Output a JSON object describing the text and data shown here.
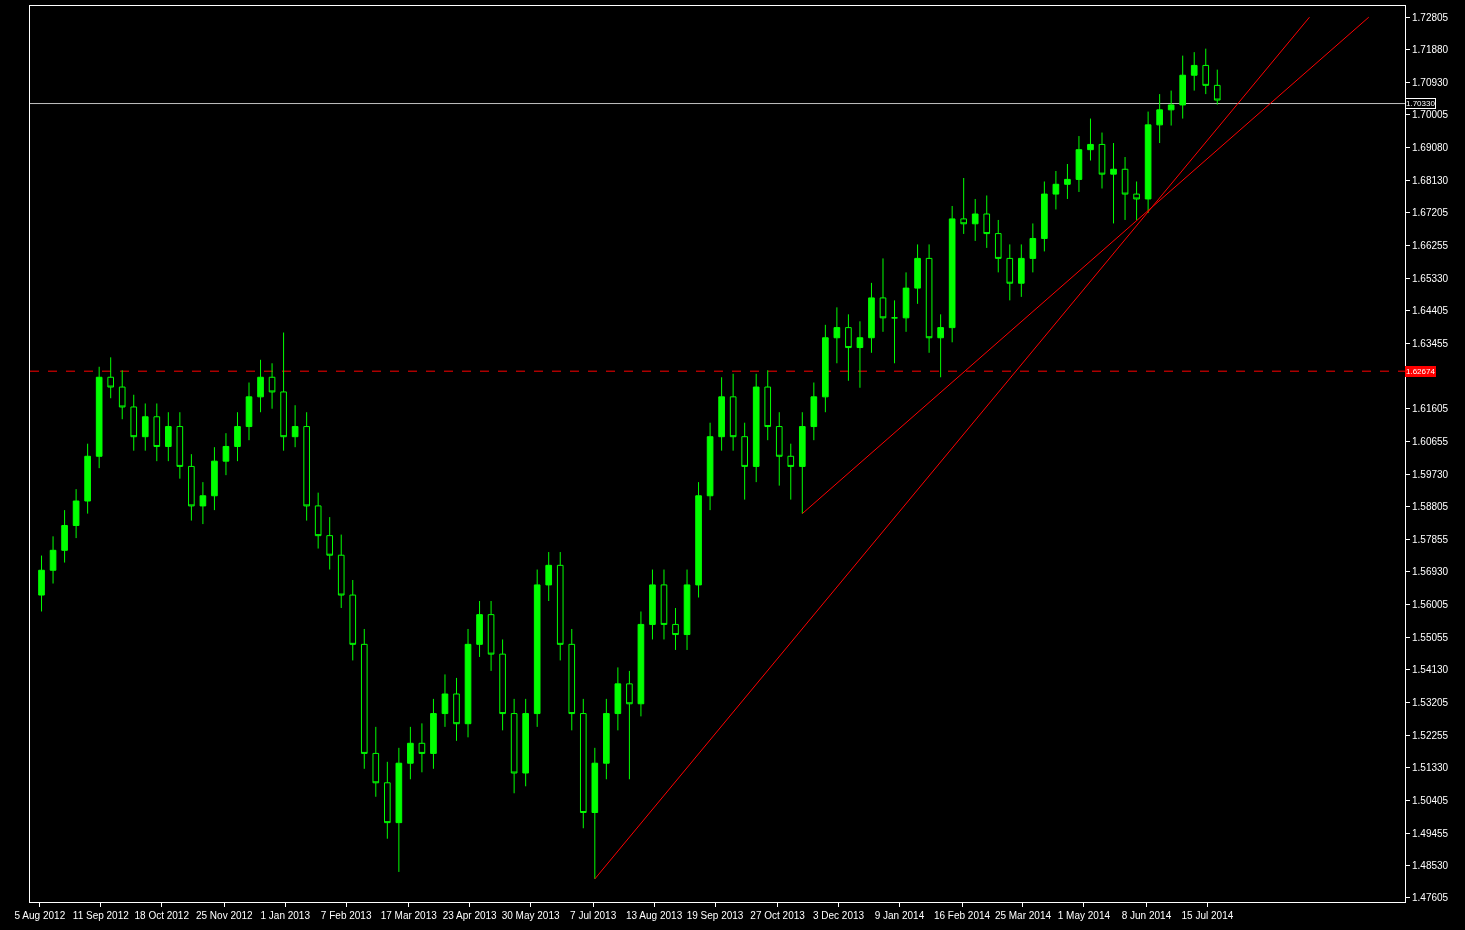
{
  "chart_data": {
    "type": "candlestick",
    "color": "#00ff00",
    "x": [
      "2012-08-06",
      "2012-08-13",
      "2012-08-20",
      "2012-08-27",
      "2012-09-03",
      "2012-09-10",
      "2012-09-17",
      "2012-09-24",
      "2012-10-01",
      "2012-10-08",
      "2012-10-15",
      "2012-10-22",
      "2012-10-29",
      "2012-11-05",
      "2012-11-12",
      "2012-11-19",
      "2012-11-26",
      "2012-12-03",
      "2012-12-10",
      "2012-12-17",
      "2012-12-24",
      "2012-12-31",
      "2013-01-07",
      "2013-01-14",
      "2013-01-21",
      "2013-01-28",
      "2013-02-04",
      "2013-02-11",
      "2013-02-18",
      "2013-02-25",
      "2013-03-04",
      "2013-03-11",
      "2013-03-18",
      "2013-03-25",
      "2013-04-01",
      "2013-04-08",
      "2013-04-15",
      "2013-04-22",
      "2013-04-29",
      "2013-05-06",
      "2013-05-13",
      "2013-05-20",
      "2013-05-27",
      "2013-06-03",
      "2013-06-10",
      "2013-06-17",
      "2013-06-24",
      "2013-07-01",
      "2013-07-08",
      "2013-07-15",
      "2013-07-22",
      "2013-07-29",
      "2013-08-05",
      "2013-08-12",
      "2013-08-19",
      "2013-08-26",
      "2013-09-02",
      "2013-09-09",
      "2013-09-16",
      "2013-09-23",
      "2013-09-30",
      "2013-10-07",
      "2013-10-14",
      "2013-10-21",
      "2013-10-28",
      "2013-11-04",
      "2013-11-11",
      "2013-11-18",
      "2013-11-25",
      "2013-12-02",
      "2013-12-09",
      "2013-12-16",
      "2013-12-23",
      "2013-12-30",
      "2014-01-06",
      "2014-01-13",
      "2014-01-20",
      "2014-01-27",
      "2014-02-03",
      "2014-02-10",
      "2014-02-17",
      "2014-02-24",
      "2014-03-03",
      "2014-03-10",
      "2014-03-17",
      "2014-03-24",
      "2014-03-31",
      "2014-04-07",
      "2014-04-14",
      "2014-04-21",
      "2014-04-28",
      "2014-05-05",
      "2014-05-12",
      "2014-05-19",
      "2014-05-26",
      "2014-06-02",
      "2014-06-09",
      "2014-06-16",
      "2014-06-23",
      "2014-06-30",
      "2014-07-07",
      "2014-07-14",
      "2014-07-21"
    ],
    "ohlc": [
      [
        1.5627,
        1.574,
        1.558,
        1.5698
      ],
      [
        1.5698,
        1.5795,
        1.566,
        1.5755
      ],
      [
        1.5755,
        1.587,
        1.572,
        1.5826
      ],
      [
        1.5826,
        1.593,
        1.579,
        1.5896
      ],
      [
        1.5896,
        1.606,
        1.586,
        1.6024
      ],
      [
        1.6024,
        1.628,
        1.599,
        1.625
      ],
      [
        1.625,
        1.6307,
        1.619,
        1.6222
      ],
      [
        1.6222,
        1.627,
        1.613,
        1.6165
      ],
      [
        1.6165,
        1.62,
        1.604,
        1.608
      ],
      [
        1.608,
        1.6175,
        1.604,
        1.6137
      ],
      [
        1.6137,
        1.6175,
        1.601,
        1.6052
      ],
      [
        1.6052,
        1.615,
        1.601,
        1.6109
      ],
      [
        1.6109,
        1.615,
        1.596,
        1.5995
      ],
      [
        1.5995,
        1.603,
        1.584,
        1.5882
      ],
      [
        1.5882,
        1.595,
        1.583,
        1.5911
      ],
      [
        1.5911,
        1.605,
        1.587,
        1.601
      ],
      [
        1.601,
        1.609,
        1.597,
        1.6052
      ],
      [
        1.6052,
        1.615,
        1.601,
        1.6109
      ],
      [
        1.6109,
        1.6235,
        1.607,
        1.6194
      ],
      [
        1.6194,
        1.63,
        1.615,
        1.625
      ],
      [
        1.625,
        1.629,
        1.616,
        1.6208
      ],
      [
        1.6208,
        1.6378,
        1.604,
        1.608
      ],
      [
        1.608,
        1.617,
        1.605,
        1.6109
      ],
      [
        1.6109,
        1.615,
        1.584,
        1.5882
      ],
      [
        1.5882,
        1.592,
        1.576,
        1.5797
      ],
      [
        1.5797,
        1.585,
        1.57,
        1.5741
      ],
      [
        1.5741,
        1.58,
        1.559,
        1.5627
      ],
      [
        1.5627,
        1.567,
        1.544,
        1.5486
      ],
      [
        1.5486,
        1.553,
        1.513,
        1.5174
      ],
      [
        1.5174,
        1.525,
        1.505,
        1.509
      ],
      [
        1.509,
        1.515,
        1.493,
        1.4976
      ],
      [
        1.4976,
        1.519,
        1.4835,
        1.5146
      ],
      [
        1.5146,
        1.525,
        1.51,
        1.5203
      ],
      [
        1.5203,
        1.526,
        1.512,
        1.5174
      ],
      [
        1.5174,
        1.533,
        1.513,
        1.5288
      ],
      [
        1.5288,
        1.54,
        1.525,
        1.5344
      ],
      [
        1.5344,
        1.539,
        1.521,
        1.5259
      ],
      [
        1.5259,
        1.553,
        1.522,
        1.5486
      ],
      [
        1.5486,
        1.561,
        1.545,
        1.5571
      ],
      [
        1.5571,
        1.561,
        1.541,
        1.5458
      ],
      [
        1.5458,
        1.55,
        1.524,
        1.5288
      ],
      [
        1.5288,
        1.533,
        1.506,
        1.5118
      ],
      [
        1.5118,
        1.533,
        1.508,
        1.5288
      ],
      [
        1.5288,
        1.57,
        1.525,
        1.5656
      ],
      [
        1.5656,
        1.575,
        1.561,
        1.5712
      ],
      [
        1.5712,
        1.575,
        1.544,
        1.5486
      ],
      [
        1.5486,
        1.553,
        1.524,
        1.5288
      ],
      [
        1.5288,
        1.533,
        1.496,
        1.5005
      ],
      [
        1.5005,
        1.519,
        1.4815,
        1.5146
      ],
      [
        1.5146,
        1.533,
        1.51,
        1.5288
      ],
      [
        1.5288,
        1.542,
        1.524,
        1.5373
      ],
      [
        1.5373,
        1.541,
        1.51,
        1.5316
      ],
      [
        1.5316,
        1.558,
        1.528,
        1.5543
      ],
      [
        1.5543,
        1.57,
        1.55,
        1.5656
      ],
      [
        1.5656,
        1.57,
        1.55,
        1.5543
      ],
      [
        1.5543,
        1.559,
        1.547,
        1.5514
      ],
      [
        1.5514,
        1.57,
        1.547,
        1.5656
      ],
      [
        1.5656,
        1.595,
        1.562,
        1.5911
      ],
      [
        1.5911,
        1.612,
        1.587,
        1.608
      ],
      [
        1.608,
        1.625,
        1.604,
        1.6194
      ],
      [
        1.6194,
        1.626,
        1.604,
        1.608
      ],
      [
        1.608,
        1.612,
        1.59,
        1.5995
      ],
      [
        1.5995,
        1.626,
        1.595,
        1.6222
      ],
      [
        1.6222,
        1.627,
        1.607,
        1.6109
      ],
      [
        1.6109,
        1.615,
        1.594,
        1.6024
      ],
      [
        1.6024,
        1.606,
        1.59,
        1.5995
      ],
      [
        1.5995,
        1.615,
        1.586,
        1.6109
      ],
      [
        1.6109,
        1.6235,
        1.607,
        1.6194
      ],
      [
        1.6194,
        1.64,
        1.615,
        1.6363
      ],
      [
        1.6363,
        1.645,
        1.629,
        1.6392
      ],
      [
        1.6392,
        1.643,
        1.624,
        1.6335
      ],
      [
        1.6335,
        1.641,
        1.622,
        1.6363
      ],
      [
        1.6363,
        1.652,
        1.632,
        1.6477
      ],
      [
        1.6477,
        1.659,
        1.638,
        1.642
      ],
      [
        1.642,
        1.647,
        1.629,
        1.642
      ],
      [
        1.642,
        1.655,
        1.638,
        1.6505
      ],
      [
        1.6505,
        1.663,
        1.646,
        1.659
      ],
      [
        1.659,
        1.663,
        1.632,
        1.6363
      ],
      [
        1.6363,
        1.643,
        1.625,
        1.6392
      ],
      [
        1.6392,
        1.674,
        1.635,
        1.6703
      ],
      [
        1.6703,
        1.682,
        1.666,
        1.6689
      ],
      [
        1.6689,
        1.676,
        1.664,
        1.6717
      ],
      [
        1.6717,
        1.677,
        1.662,
        1.6661
      ],
      [
        1.6661,
        1.67,
        1.655,
        1.659
      ],
      [
        1.659,
        1.663,
        1.647,
        1.6519
      ],
      [
        1.6519,
        1.663,
        1.648,
        1.659
      ],
      [
        1.659,
        1.669,
        1.655,
        1.6647
      ],
      [
        1.6647,
        1.681,
        1.661,
        1.6774
      ],
      [
        1.6774,
        1.684,
        1.673,
        1.6802
      ],
      [
        1.6802,
        1.686,
        1.676,
        1.6816
      ],
      [
        1.6816,
        1.694,
        1.678,
        1.6901
      ],
      [
        1.6901,
        1.699,
        1.687,
        1.6916
      ],
      [
        1.6916,
        1.695,
        1.679,
        1.6831
      ],
      [
        1.6831,
        1.692,
        1.669,
        1.6845
      ],
      [
        1.6845,
        1.688,
        1.67,
        1.6774
      ],
      [
        1.6774,
        1.681,
        1.67,
        1.676
      ],
      [
        1.676,
        1.701,
        1.672,
        1.6972
      ],
      [
        1.6972,
        1.706,
        1.692,
        1.7015
      ],
      [
        1.7015,
        1.707,
        1.697,
        1.7029
      ],
      [
        1.7029,
        1.717,
        1.699,
        1.7114
      ],
      [
        1.7114,
        1.718,
        1.707,
        1.7142
      ],
      [
        1.7142,
        1.719,
        1.706,
        1.7085
      ],
      [
        1.7085,
        1.713,
        1.703,
        1.7043
      ]
    ],
    "series": [
      {
        "type": "line",
        "color": "#ff0000",
        "x": [
          "2013-07-08",
          "2014-09-15"
        ],
        "values": [
          1.4815,
          1.728
        ]
      },
      {
        "type": "line",
        "color": "#ff0000",
        "x": [
          "2013-11-11",
          "2014-10-21"
        ],
        "values": [
          1.586,
          1.728
        ]
      }
    ],
    "ref_lines": [
      {
        "axis": "y",
        "value": 1.7033,
        "label": "1.70330",
        "color": "#c0c0c0",
        "line_style": "solid"
      },
      {
        "axis": "y",
        "value": 1.62674,
        "label": "1.62674",
        "color": "#ff0000",
        "line_style": "dashed"
      }
    ],
    "xlim": [
      "2012-07-30",
      "2014-11-12"
    ],
    "ylim": [
      1.4749,
      1.7312
    ],
    "xticks": [
      {
        "value": "2012-08-05",
        "label": "5 Aug 2012"
      },
      {
        "value": "2012-09-11",
        "label": "11 Sep 2012"
      },
      {
        "value": "2012-10-18",
        "label": "18 Oct 2012"
      },
      {
        "value": "2012-11-25",
        "label": "25 Nov 2012"
      },
      {
        "value": "2013-01-01",
        "label": "1 Jan 2013"
      },
      {
        "value": "2013-02-07",
        "label": "7 Feb 2013"
      },
      {
        "value": "2013-03-17",
        "label": "17 Mar 2013"
      },
      {
        "value": "2013-04-23",
        "label": "23 Apr 2013"
      },
      {
        "value": "2013-05-30",
        "label": "30 May 2013"
      },
      {
        "value": "2013-07-07",
        "label": "7 Jul 2013"
      },
      {
        "value": "2013-08-13",
        "label": "13 Aug 2013"
      },
      {
        "value": "2013-09-19",
        "label": "19 Sep 2013"
      },
      {
        "value": "2013-10-27",
        "label": "27 Oct 2013"
      },
      {
        "value": "2013-12-03",
        "label": "3 Dec 2013"
      },
      {
        "value": "2014-01-09",
        "label": "9 Jan 2014"
      },
      {
        "value": "2014-02-16",
        "label": "16 Feb 2014"
      },
      {
        "value": "2014-03-25",
        "label": "25 Mar 2014"
      },
      {
        "value": "2014-05-01",
        "label": "1 May 2014"
      },
      {
        "value": "2014-06-08",
        "label": "8 Jun 2014"
      },
      {
        "value": "2014-07-15",
        "label": "15 Jul 2014"
      }
    ],
    "yticks": [
      1.72805,
      {
        "value": 1.7188,
        "label": "1.71880"
      },
      {
        "value": 1.7093,
        "label": "1.70930"
      },
      1.70005,
      {
        "value": 1.6908,
        "label": "1.69080"
      },
      {
        "value": 1.6813,
        "label": "1.68130"
      },
      1.67205,
      1.66255,
      {
        "value": 1.6533,
        "label": "1.65330"
      },
      1.64405,
      1.63455,
      1.61605,
      1.60655,
      {
        "value": 1.5973,
        "label": "1.59730"
      },
      1.58805,
      1.57855,
      {
        "value": 1.5693,
        "label": "1.56930"
      },
      1.56005,
      1.55055,
      {
        "value": 1.5413,
        "label": "1.54130"
      },
      1.53205,
      1.52255,
      {
        "value": 1.5133,
        "label": "1.51330"
      },
      1.50405,
      1.49455,
      {
        "value": 1.4853,
        "label": "1.48530"
      },
      1.47605
    ],
    "grid": false
  }
}
